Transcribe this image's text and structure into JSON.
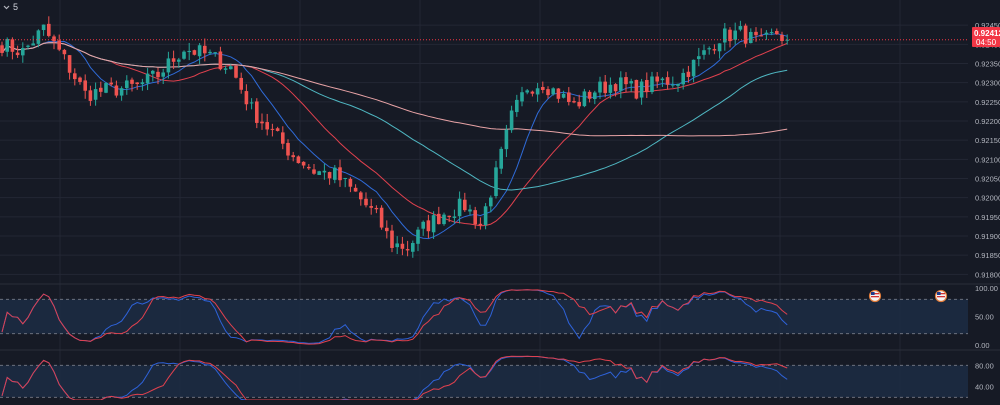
{
  "toolbar": {
    "interval_label": "5",
    "interval_arrow": "chevron-down-icon"
  },
  "colors": {
    "background": "#161a25",
    "grid": "#232734",
    "up": "#26a69a",
    "down": "#ef5350",
    "ma_fast": "#2f6bd8",
    "ma_mid": "#e0414e",
    "ma_slow_teal": "#4fb7c2",
    "ma_slower_pink": "#e8a3a6",
    "osc_blue": "#2e62d9",
    "osc_red": "#e0414e",
    "osc_band": "#1c2b42",
    "axis_text": "#b2b5be",
    "price_tag": "#f23645"
  },
  "price_tag": {
    "price": "0.92412",
    "countdown": "04:50"
  },
  "event_icons": [
    "us-flag-icon",
    "us-flag-icon"
  ],
  "chart_data": [
    {
      "type": "candlestick",
      "title": "",
      "ylim": [
        0.9178,
        0.925
      ],
      "y_ticks": [
        "0.92450",
        "0.92400",
        "0.92350",
        "0.92300",
        "0.92250",
        "0.92200",
        "0.92150",
        "0.92100",
        "0.92050",
        "0.92000",
        "0.91950",
        "0.91900",
        "0.91850",
        "0.91800"
      ],
      "last_price": 0.92412,
      "waypoints": [
        [
          0,
          0.924
        ],
        [
          4,
          0.9238
        ],
        [
          8,
          0.9244
        ],
        [
          12,
          0.9236
        ],
        [
          16,
          0.9227
        ],
        [
          20,
          0.9228
        ],
        [
          26,
          0.9229
        ],
        [
          30,
          0.9232
        ],
        [
          35,
          0.9239
        ],
        [
          40,
          0.9237
        ],
        [
          44,
          0.9234
        ],
        [
          48,
          0.9223
        ],
        [
          52,
          0.9217
        ],
        [
          56,
          0.9211
        ],
        [
          60,
          0.9207
        ],
        [
          64,
          0.9206
        ],
        [
          68,
          0.9201
        ],
        [
          72,
          0.9195
        ],
        [
          75,
          0.9188
        ],
        [
          78,
          0.9187
        ],
        [
          81,
          0.9192
        ],
        [
          85,
          0.9196
        ],
        [
          89,
          0.9198
        ],
        [
          92,
          0.9193
        ],
        [
          95,
          0.9206
        ],
        [
          98,
          0.9221
        ],
        [
          101,
          0.9229
        ],
        [
          104,
          0.923
        ],
        [
          107,
          0.9227
        ],
        [
          110,
          0.9224
        ],
        [
          114,
          0.9228
        ],
        [
          118,
          0.923
        ],
        [
          122,
          0.9228
        ],
        [
          126,
          0.923
        ],
        [
          130,
          0.9231
        ],
        [
          134,
          0.9236
        ],
        [
          138,
          0.9242
        ],
        [
          142,
          0.9243
        ],
        [
          146,
          0.924
        ],
        [
          149,
          0.9243
        ],
        [
          151,
          0.9241
        ]
      ],
      "moving_averages": [
        {
          "color_key": "ma_fast",
          "period": 9
        },
        {
          "color_key": "ma_mid",
          "period": 21
        },
        {
          "color_key": "ma_slow_teal",
          "period": 50
        },
        {
          "color_key": "ma_slower_pink",
          "period": 100
        }
      ]
    },
    {
      "type": "line",
      "ylim": [
        -5,
        105
      ],
      "y_ticks": [
        "100.00",
        "50.00",
        "0.00"
      ],
      "levels": [
        80,
        20
      ],
      "series": [
        {
          "color_key": "osc_blue",
          "period": 9
        },
        {
          "color_key": "osc_red",
          "period": 14
        }
      ]
    },
    {
      "type": "line",
      "ylim": [
        15,
        105
      ],
      "y_ticks": [
        "80.00",
        "40.00"
      ],
      "levels": [
        80,
        20
      ],
      "series": [
        {
          "color_key": "osc_blue",
          "period": 14
        },
        {
          "color_key": "osc_red",
          "period": 21
        }
      ]
    }
  ]
}
